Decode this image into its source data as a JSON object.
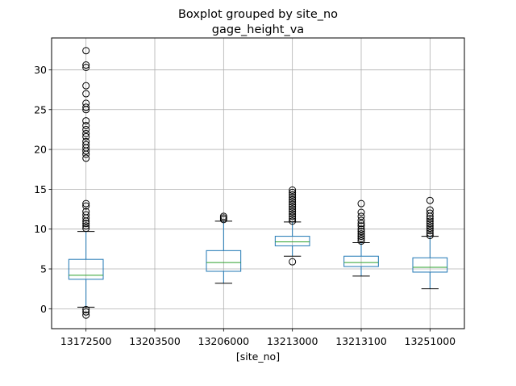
{
  "chart_data": {
    "type": "boxplot",
    "suptitle": "Boxplot grouped by site_no",
    "title": "gage_height_va",
    "xlabel": "[site_no]",
    "ylabel": "",
    "ylim": [
      -2.5,
      34
    ],
    "yticks": [
      0,
      5,
      10,
      15,
      20,
      25,
      30
    ],
    "grid": true,
    "colors": {
      "box": "#1f77b4",
      "median": "#2ca02c",
      "whisker": "#1f77b4",
      "cap": "#000000",
      "flier": "#000000",
      "grid": "#b0b0b0"
    },
    "categories": [
      "13172500",
      "13203500",
      "13206000",
      "13213000",
      "13213100",
      "13251000"
    ],
    "boxes": [
      {
        "site": "13172500",
        "q1": 3.7,
        "median": 4.2,
        "q3": 6.2,
        "whisker_low": 0.2,
        "whisker_high": 9.7,
        "fliers": [
          32.4,
          30.6,
          30.3,
          28.0,
          27.0,
          25.8,
          25.3,
          25.0,
          23.6,
          23.0,
          22.5,
          22.0,
          21.6,
          21.0,
          20.6,
          20.2,
          19.8,
          19.4,
          18.9,
          13.2,
          12.9,
          12.2,
          11.8,
          11.4,
          11.0,
          10.7,
          10.4,
          10.1,
          -0.1,
          -0.4,
          -0.8
        ]
      },
      {
        "site": "13203500",
        "empty": true
      },
      {
        "site": "13206000",
        "q1": 4.7,
        "median": 5.8,
        "q3": 7.3,
        "whisker_low": 3.2,
        "whisker_high": 11.0,
        "fliers": [
          11.2,
          11.4,
          11.6
        ]
      },
      {
        "site": "13213000",
        "q1": 7.9,
        "median": 8.4,
        "q3": 9.1,
        "whisker_low": 6.6,
        "whisker_high": 10.9,
        "fliers": [
          11.0,
          11.3,
          11.6,
          11.9,
          12.2,
          12.5,
          12.8,
          13.1,
          13.4,
          13.7,
          14.0,
          14.3,
          14.6,
          14.9,
          5.9
        ]
      },
      {
        "site": "13213100",
        "q1": 5.3,
        "median": 5.8,
        "q3": 6.6,
        "whisker_low": 4.1,
        "whisker_high": 8.3,
        "fliers": [
          8.5,
          8.8,
          9.1,
          9.4,
          9.7,
          10.0,
          10.4,
          10.7,
          11.1,
          11.6,
          12.1,
          13.2
        ]
      },
      {
        "site": "13251000",
        "q1": 4.6,
        "median": 5.2,
        "q3": 6.4,
        "whisker_low": 2.5,
        "whisker_high": 9.1,
        "fliers": [
          9.2,
          9.5,
          9.8,
          10.1,
          10.4,
          10.7,
          11.0,
          11.3,
          11.6,
          12.0,
          12.4,
          13.6
        ]
      }
    ]
  }
}
